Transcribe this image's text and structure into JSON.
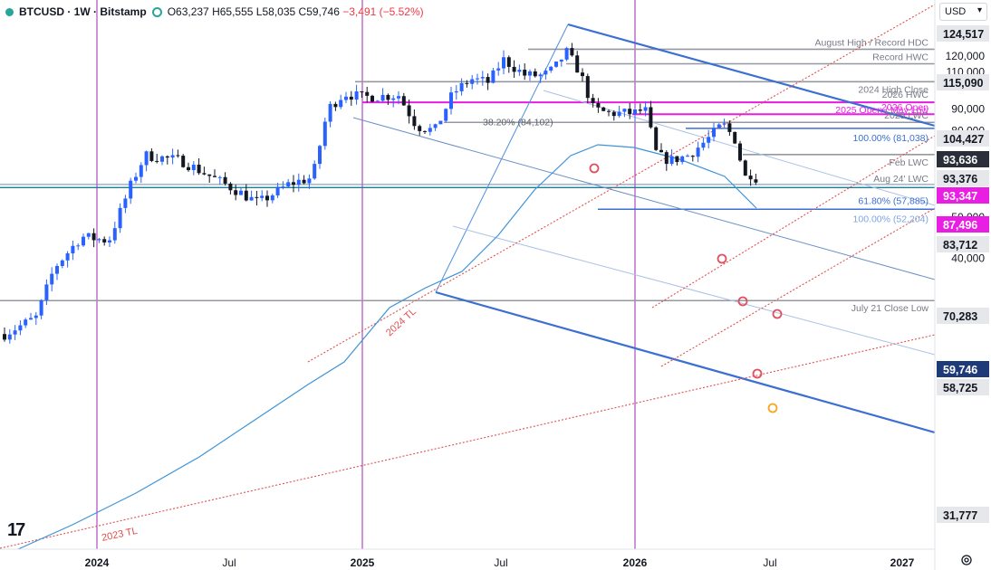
{
  "header": {
    "symbol": "BTCUSD",
    "interval": "1W",
    "exchange": "Bitstamp",
    "open": "O63,237",
    "high": "H65,555",
    "low": "L58,035",
    "close": "C59,746",
    "change": "−3,491 (−5.52%)"
  },
  "currency_button": "USD",
  "logo_text": "17",
  "colors": {
    "up": "#2962ff",
    "down": "#131722",
    "sma": "#3d93d8",
    "channel": "#3b6fd1",
    "magenta": "#e91ee3",
    "red_dotted": "#e05050",
    "level": "#9598a1",
    "vline": "#9c27b0",
    "orange": "#f5a623"
  },
  "chart_data": {
    "type": "candlestick",
    "y_scale": "log",
    "ylim": [
      27000,
      132000
    ],
    "x_tick_labels": [
      "2024",
      "Jul",
      "2025",
      "Jul",
      "2026",
      "Jul",
      "2027"
    ],
    "y_tick_labels": [
      "120,000",
      "110,000",
      "90,000",
      "80,000",
      "50,000",
      "40,000"
    ],
    "price_labels": [
      {
        "label": "124,517",
        "value": 124517,
        "style": "gray"
      },
      {
        "label": "115,090",
        "value": 115090,
        "style": "gray"
      },
      {
        "label": "104,427",
        "value": 104427,
        "style": "gray"
      },
      {
        "label": "93,636",
        "value": 93636,
        "style": "dark"
      },
      {
        "label": "93,376",
        "value": 93376,
        "style": "gray"
      },
      {
        "label": "93,347",
        "value": 93347,
        "style": "magenta"
      },
      {
        "label": "87,496",
        "value": 87496,
        "style": "magenta"
      },
      {
        "label": "83,712",
        "value": 83712,
        "style": "gray"
      },
      {
        "label": "70,283",
        "value": 70283,
        "style": "gray"
      },
      {
        "label": "59,746",
        "value": 59746,
        "style": "navy"
      },
      {
        "label": "58,725",
        "value": 58725,
        "style": "gray"
      },
      {
        "label": "31,777",
        "value": 31777,
        "style": "gray"
      }
    ],
    "level_annotations": [
      {
        "text": "August High / Record HDC",
        "value": 124517
      },
      {
        "text": "Record HWC",
        "value": 115090
      },
      {
        "text": "2024 High Close",
        "value": 104427
      },
      {
        "text": "2026 HWC",
        "value": 93376
      },
      {
        "text": "2025 Open / May Low",
        "value": 93347
      },
      {
        "text": "2026 Open",
        "value": 87496
      },
      {
        "text": "38.20% (84,102)",
        "value": 84102
      },
      {
        "text": "2025 LWC",
        "value": 83712
      },
      {
        "text": "100.00% (81,038)",
        "value": 81038
      },
      {
        "text": "Feb LWC",
        "value": 70283
      },
      {
        "text": "Aug 24' LWC",
        "value": 59746
      },
      {
        "text": "61.80% (57,885)",
        "value": 57885
      },
      {
        "text": "100.00% (52,204)",
        "value": 52204
      },
      {
        "text": "July 21 Close Low",
        "value": 31777
      }
    ],
    "trendline_labels": [
      "2024 TL",
      "2023 TL"
    ]
  }
}
